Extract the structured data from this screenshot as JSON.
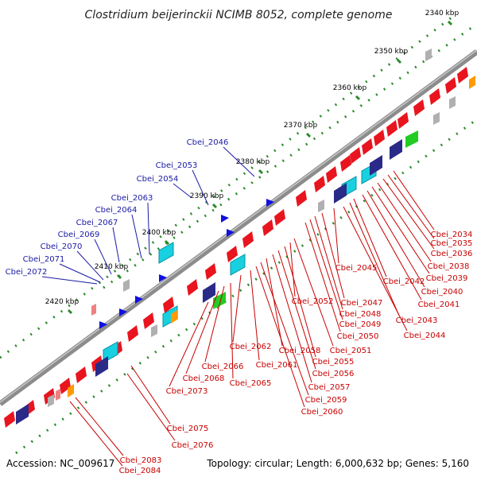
{
  "header": {
    "title": "Clostridium beijerinckii NCIMB 8052, complete genome"
  },
  "footer": {
    "accession": "Accession: NC_009617",
    "summary": "Topology: circular; Length: 6,000,632 bp; Genes: 5,160"
  },
  "scale": {
    "ticks": [
      "2340 kbp",
      "2350 kbp",
      "2360 kbp",
      "2370 kbp",
      "2380 kbp",
      "2390 kbp",
      "2400 kbp",
      "2410 kbp",
      "2420 kbp"
    ]
  },
  "genes": {
    "reverse_strand_labels": [
      "Cbei_2046",
      "Cbei_2053",
      "Cbei_2054",
      "Cbei_2063",
      "Cbei_2064",
      "Cbei_2067",
      "Cbei_2069",
      "Cbei_2070",
      "Cbei_2071",
      "Cbei_2072"
    ],
    "forward_strand_labels": [
      "Cbei_2034",
      "Cbei_2035",
      "Cbei_2036",
      "Cbei_2038",
      "Cbei_2039",
      "Cbei_2040",
      "Cbei_2041",
      "Cbei_2042",
      "Cbei_2043",
      "Cbei_2044",
      "Cbei_2045",
      "Cbei_2047",
      "Cbei_2048",
      "Cbei_2049",
      "Cbei_2050",
      "Cbei_2051",
      "Cbei_2052",
      "Cbei_2055",
      "Cbei_2056",
      "Cbei_2057",
      "Cbei_2058",
      "Cbei_2059",
      "Cbei_2060",
      "Cbei_2061",
      "Cbei_2062",
      "Cbei_2065",
      "Cbei_2066",
      "Cbei_2068",
      "Cbei_2073",
      "Cbei_2075",
      "Cbei_2076",
      "Cbei_2083",
      "Cbei_2084"
    ]
  },
  "colors": {
    "backbone": "#8c8c8c",
    "tick_mark": "#2a8a2a",
    "forward_label": "#c80000",
    "reverse_label": "#1a1aa6",
    "gene_red": "#e8141e",
    "gene_cyan": "#18d0e0",
    "gene_navy": "#2a2a88",
    "gene_blue": "#1010e0",
    "gene_orange": "#ff9a00"
  }
}
